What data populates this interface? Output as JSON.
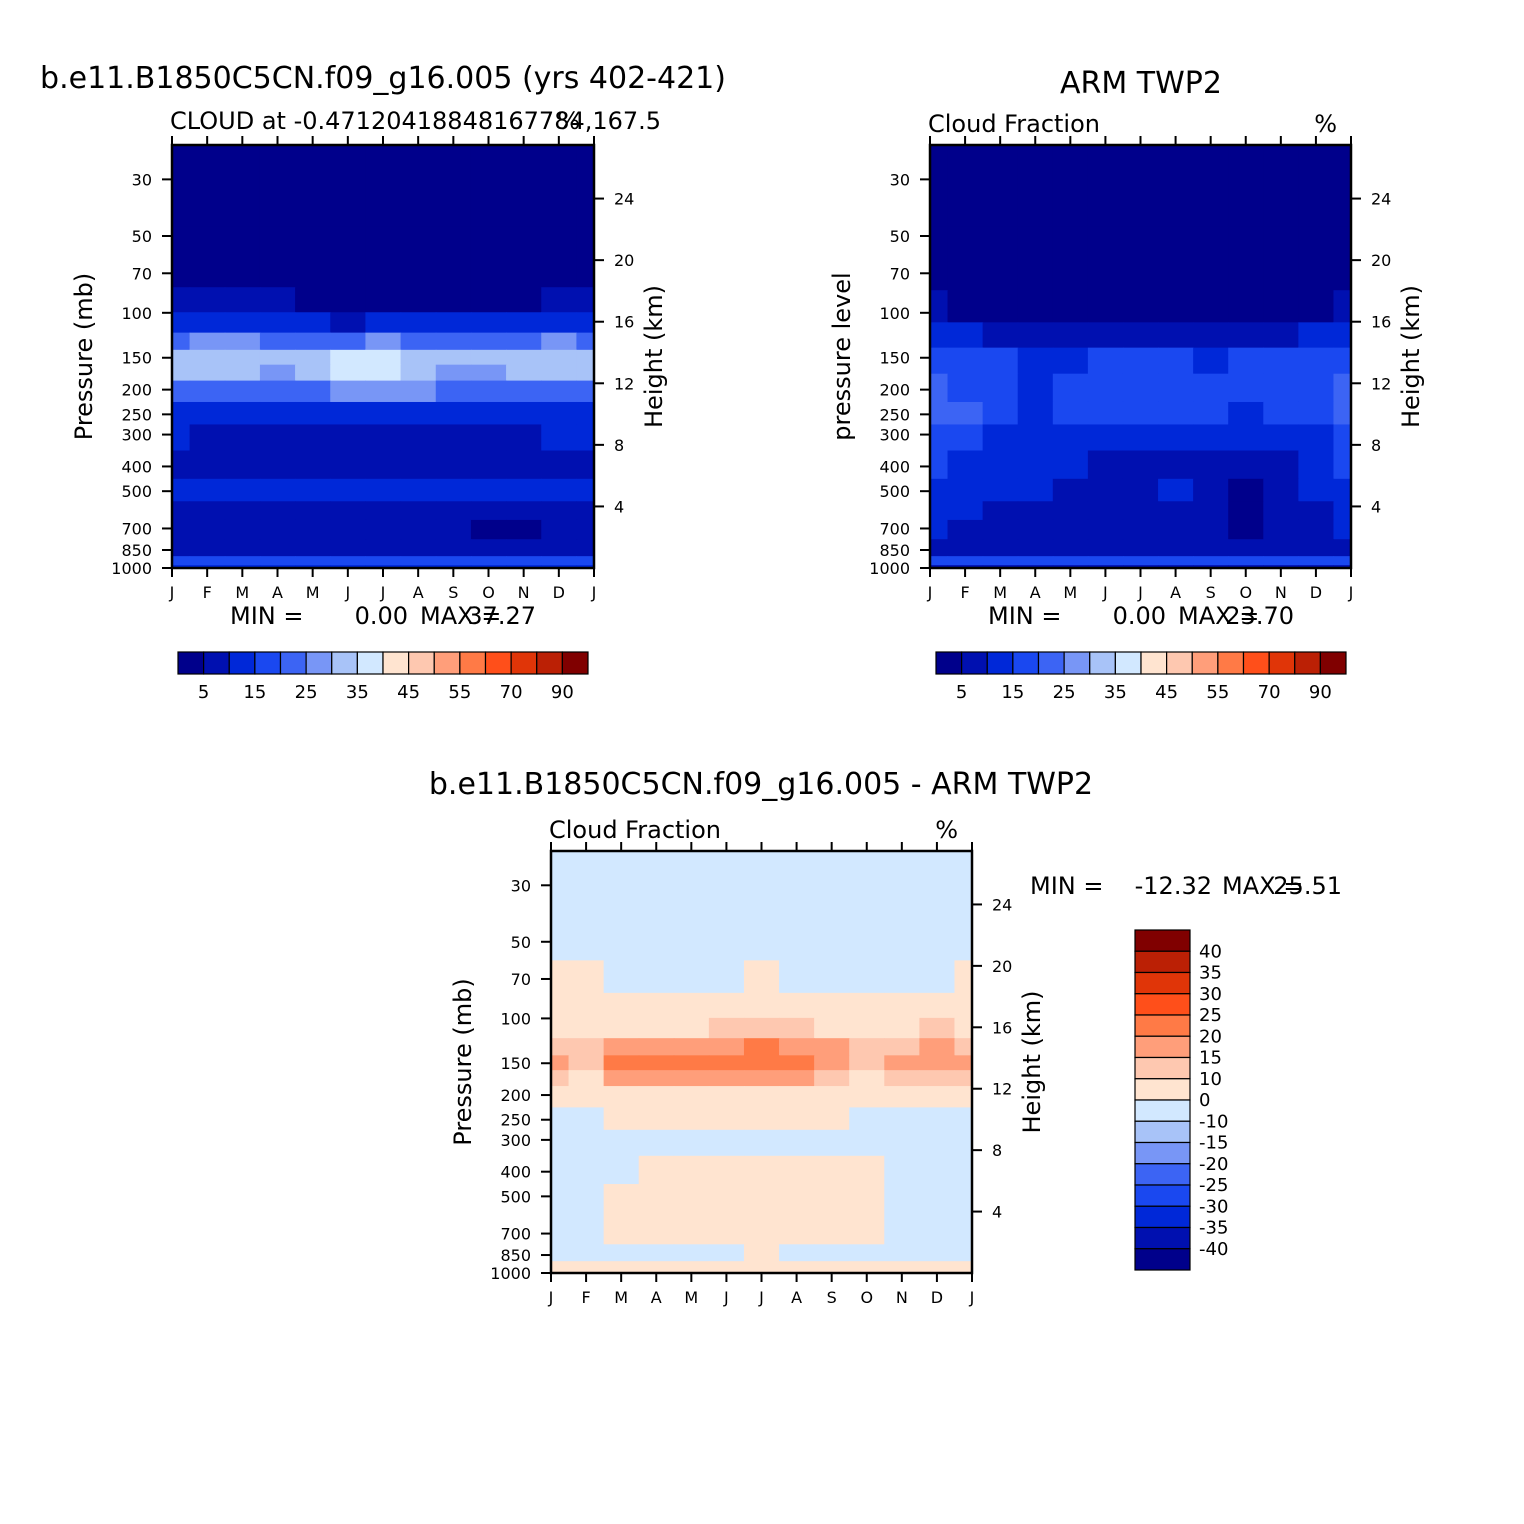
{
  "chart_data": [
    {
      "type": "heatmap",
      "id": "model",
      "main_title": "b.e11.B1850C5CN.f09_g16.005 (yrs 402-421)",
      "subtitle_left": "CLOUD at -0.47120418848167784,167.5",
      "subtitle_right": "%",
      "ylabel": "Pressure (mb)",
      "ylabel_right": "Height (km)",
      "x_ticks": [
        "J",
        "F",
        "M",
        "A",
        "M",
        "J",
        "J",
        "A",
        "S",
        "O",
        "N",
        "D",
        "J"
      ],
      "y_ticks": [
        "30",
        "50",
        "70",
        "100",
        "150",
        "200",
        "250",
        "300",
        "400",
        "500",
        "700",
        "850",
        "1000"
      ],
      "y_ticks_right": [
        "24",
        "20",
        "16",
        "12",
        "8",
        "4"
      ],
      "min_label": "MIN =",
      "min_value": "0.00",
      "max_label": "MAX =",
      "max_value": "37.27",
      "months": [
        "Jan",
        "Feb",
        "Mar",
        "Apr",
        "May",
        "Jun",
        "Jul",
        "Aug",
        "Sep",
        "Oct",
        "Nov",
        "Dec",
        "Jan"
      ],
      "profile_levels_mb": [
        30,
        70,
        90,
        110,
        130,
        150,
        170,
        200,
        250,
        300,
        400,
        500,
        600,
        700,
        850,
        950,
        1000
      ],
      "monthly_values": [
        [
          0,
          0,
          0,
          0,
          0,
          0,
          0,
          0,
          0,
          0,
          0,
          0,
          0
        ],
        [
          0,
          0,
          0,
          0,
          0,
          0,
          0,
          0,
          0,
          0,
          0,
          0,
          0
        ],
        [
          5,
          6,
          6,
          5,
          4,
          3,
          3,
          3,
          3,
          3,
          4,
          5,
          5
        ],
        [
          14,
          13,
          12,
          11,
          10,
          9,
          10,
          10,
          10,
          10,
          11,
          13,
          14
        ],
        [
          24,
          26,
          27,
          24,
          22,
          23,
          25,
          24,
          22,
          20,
          23,
          27,
          24
        ],
        [
          33,
          34,
          34,
          30,
          33,
          37,
          36,
          34,
          32,
          30,
          33,
          34,
          33
        ],
        [
          31,
          32,
          31,
          29,
          32,
          36,
          35,
          32,
          28,
          27,
          30,
          31,
          31
        ],
        [
          24,
          24,
          24,
          23,
          24,
          26,
          27,
          25,
          22,
          21,
          23,
          24,
          24
        ],
        [
          14,
          14,
          14,
          13,
          13,
          13,
          14,
          13,
          13,
          14,
          14,
          14,
          14
        ],
        [
          10,
          9,
          9,
          9,
          9,
          9,
          9,
          8,
          8,
          9,
          9,
          10,
          10
        ],
        [
          9,
          9,
          9,
          9,
          9,
          8,
          7,
          8,
          9,
          9,
          9,
          9,
          9
        ],
        [
          12,
          12,
          12,
          12,
          12,
          12,
          14,
          13,
          12,
          11,
          11,
          12,
          12
        ],
        [
          8,
          8,
          8,
          8,
          8,
          8,
          8,
          8,
          7,
          6,
          6,
          7,
          8
        ],
        [
          7,
          7,
          7,
          7,
          7,
          6,
          6,
          6,
          5,
          3,
          3,
          5,
          7
        ],
        [
          8,
          8,
          8,
          8,
          8,
          8,
          8,
          8,
          8,
          7,
          7,
          8,
          8
        ],
        [
          17,
          17,
          17,
          17,
          17,
          17,
          17,
          17,
          17,
          17,
          17,
          17,
          17
        ],
        [
          10,
          10,
          10,
          10,
          10,
          10,
          10,
          10,
          10,
          10,
          10,
          10,
          10
        ]
      ]
    },
    {
      "type": "heatmap",
      "id": "obs",
      "main_title": "ARM TWP2",
      "subtitle_left": "Cloud Fraction",
      "subtitle_right": "%",
      "ylabel": "pressure level",
      "ylabel_right": "Height (km)",
      "x_ticks": [
        "J",
        "F",
        "M",
        "A",
        "M",
        "J",
        "J",
        "A",
        "S",
        "O",
        "N",
        "D",
        "J"
      ],
      "y_ticks": [
        "30",
        "50",
        "70",
        "100",
        "150",
        "200",
        "250",
        "300",
        "400",
        "500",
        "700",
        "850",
        "1000"
      ],
      "y_ticks_right": [
        "24",
        "20",
        "16",
        "12",
        "8",
        "4"
      ],
      "min_label": "MIN =",
      "min_value": "0.00",
      "max_label": "MAX =",
      "max_value": "23.70",
      "months": [
        "Jan",
        "Feb",
        "Mar",
        "Apr",
        "May",
        "Jun",
        "Jul",
        "Aug",
        "Sep",
        "Oct",
        "Nov",
        "Dec",
        "Jan"
      ],
      "profile_levels_mb": [
        30,
        70,
        95,
        125,
        150,
        200,
        250,
        300,
        400,
        500,
        600,
        700,
        850,
        950,
        1000
      ],
      "monthly_values": [
        [
          0,
          0,
          0,
          0,
          0,
          0,
          0,
          0,
          0,
          0,
          0,
          0,
          0
        ],
        [
          0,
          0,
          0,
          0,
          0,
          0,
          0,
          0,
          0,
          0,
          0,
          0,
          0
        ],
        [
          7,
          4,
          2,
          1,
          1,
          1,
          2,
          1,
          1,
          1,
          2,
          4,
          7
        ],
        [
          14,
          12,
          9,
          7,
          6,
          6,
          7,
          6,
          5,
          6,
          8,
          11,
          14
        ],
        [
          17,
          16,
          15,
          14,
          14,
          15,
          16,
          15,
          14,
          15,
          17,
          18,
          17
        ],
        [
          22,
          18,
          15,
          14,
          16,
          19,
          18,
          18,
          16,
          17,
          18,
          18,
          22
        ],
        [
          24,
          20,
          15,
          14,
          15,
          16,
          15,
          15,
          15,
          14,
          16,
          16,
          24
        ],
        [
          18,
          17,
          14,
          13,
          12,
          12,
          13,
          13,
          11,
          10,
          13,
          14,
          18
        ],
        [
          15,
          13,
          13,
          12,
          10,
          9,
          9,
          9,
          9,
          6,
          9,
          11,
          15
        ],
        [
          14,
          12,
          12,
          11,
          9,
          9,
          9,
          10,
          9,
          4,
          8,
          10,
          14
        ],
        [
          11,
          10,
          9,
          8,
          7,
          8,
          7,
          9,
          7,
          3,
          6,
          9,
          11
        ],
        [
          10,
          8,
          7,
          7,
          6,
          7,
          6,
          7,
          6,
          3,
          5,
          8,
          10
        ],
        [
          8,
          7,
          7,
          6,
          6,
          6,
          6,
          6,
          6,
          5,
          6,
          7,
          8
        ],
        [
          15,
          15,
          15,
          15,
          15,
          15,
          15,
          15,
          15,
          15,
          15,
          15,
          15
        ],
        [
          6,
          6,
          6,
          6,
          6,
          6,
          6,
          6,
          6,
          6,
          6,
          6,
          6
        ]
      ]
    },
    {
      "type": "heatmap",
      "id": "diff",
      "main_title": "b.e11.B1850C5CN.f09_g16.005 - ARM TWP2",
      "subtitle_left": "Cloud Fraction",
      "subtitle_right": "%",
      "ylabel": "Pressure (mb)",
      "ylabel_right": "Height (km)",
      "x_ticks": [
        "J",
        "F",
        "M",
        "A",
        "M",
        "J",
        "J",
        "A",
        "S",
        "O",
        "N",
        "D",
        "J"
      ],
      "y_ticks": [
        "30",
        "50",
        "70",
        "100",
        "150",
        "200",
        "250",
        "300",
        "400",
        "500",
        "700",
        "850",
        "1000"
      ],
      "y_ticks_right": [
        "24",
        "20",
        "16",
        "12",
        "8",
        "4"
      ],
      "min_label": "MIN =",
      "min_value": "-12.32",
      "max_label": "MAX =",
      "max_value": "25.51",
      "months": [
        "Jan",
        "Feb",
        "Mar",
        "Apr",
        "May",
        "Jun",
        "Jul",
        "Aug",
        "Sep",
        "Oct",
        "Nov",
        "Dec",
        "Jan"
      ],
      "profile_levels_mb": [
        30,
        50,
        70,
        90,
        110,
        130,
        150,
        170,
        200,
        250,
        300,
        400,
        500,
        600,
        700,
        850,
        950,
        1000
      ],
      "monthly_values": [
        [
          -2,
          -2,
          -2,
          -2,
          -2,
          -2,
          -2,
          -2,
          -2,
          -2,
          -2,
          -2,
          -2
        ],
        [
          -2,
          -2,
          -2,
          -2,
          -2,
          -2,
          -2,
          -2,
          -2,
          -2,
          -2,
          -2,
          -2
        ],
        [
          1,
          2,
          -1,
          -1,
          -1,
          -1,
          3,
          -1,
          -1,
          -1,
          -1,
          -1,
          1
        ],
        [
          4,
          4,
          4,
          4,
          4,
          4,
          4,
          4,
          4,
          4,
          4,
          4,
          4
        ],
        [
          7,
          7,
          9,
          9,
          9,
          11,
          11,
          10,
          8,
          6,
          8,
          11,
          7
        ],
        [
          13,
          13,
          17,
          18,
          18,
          19,
          20,
          18,
          15,
          12,
          14,
          15,
          13
        ],
        [
          16,
          12,
          20,
          21,
          22,
          22,
          23,
          21,
          17,
          12,
          15,
          16,
          16
        ],
        [
          10,
          9,
          16,
          17,
          17,
          18,
          19,
          16,
          12,
          8,
          10,
          10,
          10
        ],
        [
          5,
          4,
          8,
          8,
          8,
          9,
          9,
          8,
          5,
          4,
          5,
          4,
          5
        ],
        [
          -2,
          -2,
          1,
          1,
          2,
          2,
          2,
          2,
          1,
          -1,
          -2,
          -2,
          -2
        ],
        [
          -3,
          -5,
          -3,
          -2,
          -2,
          -2,
          -1,
          -1,
          -1,
          -1,
          -3,
          -3,
          -3
        ],
        [
          -3,
          -3,
          -2,
          1,
          3,
          2,
          2,
          2,
          2,
          1,
          -2,
          -3,
          -3
        ],
        [
          -4,
          -3,
          1,
          3,
          3,
          3,
          4,
          2,
          2,
          1,
          -1,
          -2,
          -4
        ],
        [
          -4,
          -3,
          2,
          4,
          2,
          3,
          3,
          2,
          2,
          1,
          -1,
          -1,
          -4
        ],
        [
          -4,
          -3,
          1,
          4,
          2,
          3,
          3,
          2,
          2,
          1,
          -1,
          -2,
          -4
        ],
        [
          -4,
          -4,
          -3,
          -2,
          -1,
          -1,
          1,
          -1,
          -1,
          -3,
          -4,
          -4,
          -4
        ],
        [
          5,
          5,
          5,
          5,
          6,
          6,
          6,
          7,
          8,
          5,
          5,
          5,
          5
        ],
        [
          2,
          2,
          2,
          2,
          2,
          2,
          2,
          2,
          2,
          2,
          2,
          2,
          2
        ]
      ]
    }
  ],
  "colorbars": {
    "abs": {
      "levels": [
        5,
        10,
        15,
        20,
        25,
        30,
        35,
        40,
        45,
        50,
        55,
        60,
        70,
        80,
        90
      ],
      "labels": [
        "5",
        "15",
        "25",
        "35",
        "45",
        "55",
        "70",
        "90"
      ],
      "colors": [
        "#00008B",
        "#0010B0",
        "#0028D8",
        "#1A48F0",
        "#3C64F4",
        "#7896F6",
        "#A8C3F8",
        "#D2E8FF",
        "#FFE4D0",
        "#FEC8B0",
        "#FF9E7A",
        "#FF7A46",
        "#FF4F1A",
        "#E03508",
        "#BB2005",
        "#800000"
      ]
    },
    "diff": {
      "levels": [
        -40,
        -35,
        -30,
        -25,
        -20,
        -15,
        -10,
        0,
        10,
        15,
        20,
        25,
        30,
        35,
        40
      ],
      "labels": [
        "40",
        "35",
        "30",
        "25",
        "20",
        "15",
        "10",
        "0",
        "-10",
        "-15",
        "-20",
        "-25",
        "-30",
        "-35",
        "-40"
      ],
      "colors": [
        "#00008B",
        "#0010B0",
        "#0028D8",
        "#1A48F0",
        "#3C64F4",
        "#7896F6",
        "#A8C3F8",
        "#D2E8FF",
        "#FFE4D0",
        "#FEC8B0",
        "#FF9E7A",
        "#FF7A46",
        "#FF4F1A",
        "#E03508",
        "#BB2005",
        "#800000"
      ]
    }
  }
}
